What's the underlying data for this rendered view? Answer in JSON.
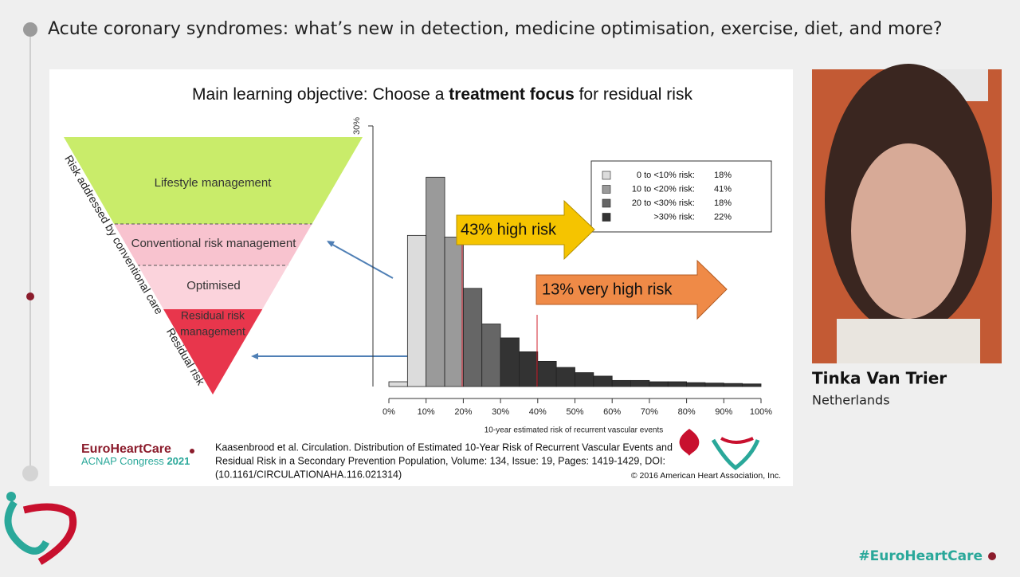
{
  "header": {
    "title": "Acute coronary syndromes: what’s new in detection, medicine optimisation, exercise, diet, and more?"
  },
  "slide": {
    "title_prefix": "Main learning objective: Choose a ",
    "title_bold": "treatment focus",
    "title_suffix": " for residual risk",
    "pyramid": {
      "side_label_top": "Risk addressed by conventional care",
      "side_label_bottom": "Residual risk",
      "levels": [
        "Lifestyle management",
        "Conventional risk management",
        "Optimised",
        "Residual risk",
        "management"
      ]
    },
    "chart": {
      "type": "histogram",
      "bins": [
        0,
        5,
        10,
        15,
        20,
        25,
        30,
        35,
        40,
        45,
        50,
        55,
        60,
        65,
        70,
        75,
        80,
        85,
        90,
        95,
        100
      ],
      "values": [
        0.55,
        17.4,
        24.1,
        17.2,
        11.3,
        7.2,
        5.6,
        4.0,
        2.9,
        2.2,
        1.6,
        1.2,
        0.7,
        0.7,
        0.55,
        0.55,
        0.45,
        0.4,
        0.35,
        0.3
      ],
      "bar_colors": [
        "#dcdcdc",
        "#dcdcdc",
        "#9a9a9a",
        "#9a9a9a",
        "#666666",
        "#666666",
        "#333333",
        "#333333",
        "#333333",
        "#333333",
        "#333333",
        "#333333",
        "#333333",
        "#333333",
        "#333333",
        "#333333",
        "#333333",
        "#333333",
        "#333333",
        "#333333"
      ],
      "xlabel": "10-year estimated risk of recurrent vascular events",
      "xlim": [
        0,
        100
      ],
      "ylim": [
        0,
        30
      ],
      "xticks": [
        {
          "value": 0,
          "label": "0%"
        },
        {
          "value": 10,
          "label": "10%"
        },
        {
          "value": 20,
          "label": "20%"
        },
        {
          "value": 30,
          "label": "30%"
        },
        {
          "value": 40,
          "label": "40%"
        },
        {
          "value": 50,
          "label": "50%"
        },
        {
          "value": 60,
          "label": "60%"
        },
        {
          "value": 70,
          "label": "70%"
        },
        {
          "value": 80,
          "label": "80%"
        },
        {
          "value": 90,
          "label": "90%"
        },
        {
          "value": 100,
          "label": "100%"
        }
      ],
      "yticks": [
        {
          "value": 30,
          "label": "30%"
        }
      ],
      "legend": [
        {
          "label": "0  to <10% risk:",
          "share": "18%",
          "color": "#dcdcdc"
        },
        {
          "label": "10 to <20% risk:",
          "share": "41%",
          "color": "#9a9a9a"
        },
        {
          "label": "20 to <30% risk:",
          "share": "18%",
          "color": "#666666"
        },
        {
          "label": ">30% risk:",
          "share": "22%",
          "color": "#333333"
        }
      ],
      "arrows": [
        "43% high risk",
        "13% very high risk"
      ]
    },
    "citation": [
      "Kaasenbrood et al. Circulation. Distribution of Estimated 10-Year Risk of Recurrent Vascular Events and",
      "Residual Risk in a Secondary Prevention Population, Volume: 134, Issue: 19, Pages: 1419-1429, DOI:",
      "(10.1161/CIRCULATIONAHA.116.021314)"
    ],
    "copyright": "© 2016 American Heart Association, Inc.",
    "logo": {
      "name": "EuroHeartCare",
      "sub": "ACNAP Congress",
      "year": "2021"
    }
  },
  "speaker": {
    "name": "Tinka Van Trier",
    "country": "Netherlands"
  },
  "hashtag": "#EuroHeartCare"
}
